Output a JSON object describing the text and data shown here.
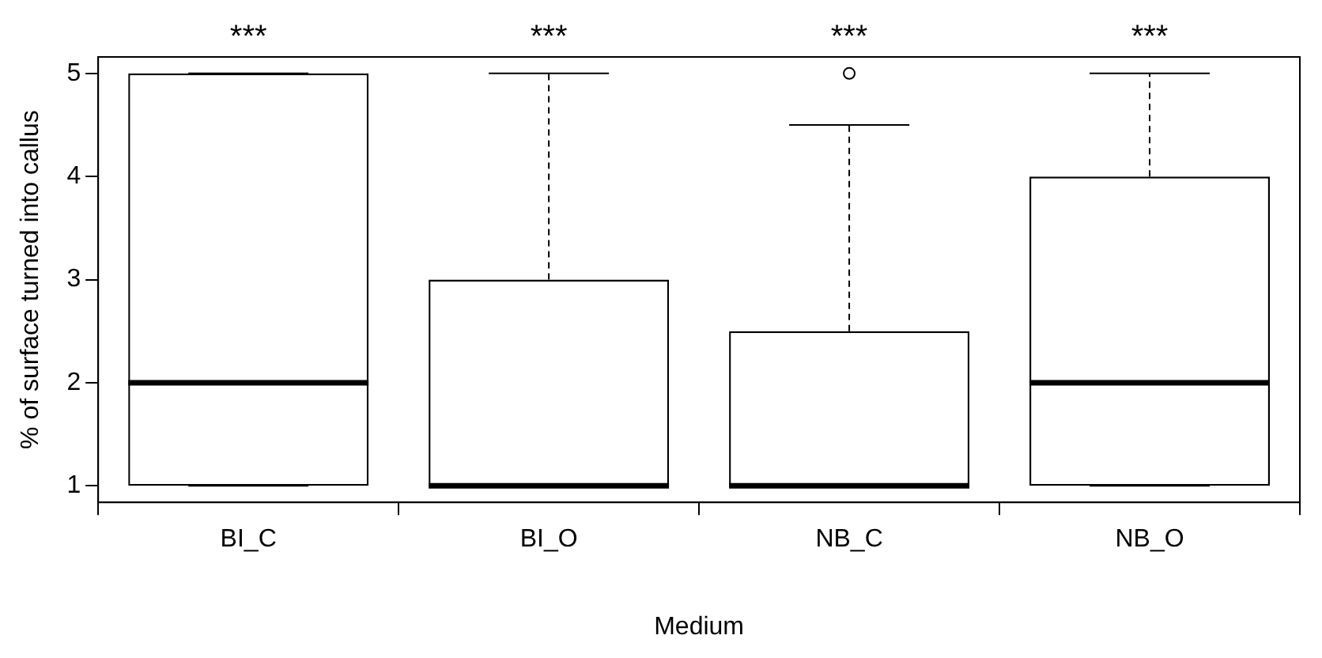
{
  "chart_data": {
    "type": "box",
    "xlabel": "Medium",
    "ylabel": "% of surface turned into callus",
    "categories": [
      "BI_C",
      "BI_O",
      "NB_C",
      "NB_O"
    ],
    "boxes": [
      {
        "low": 1,
        "q1": 1,
        "median": 2,
        "q3": 5,
        "high": 5
      },
      {
        "low": 1,
        "q1": 1,
        "median": 1,
        "q3": 3,
        "high": 5
      },
      {
        "low": 1,
        "q1": 1,
        "median": 1,
        "q3": 2.5,
        "high": 4.5,
        "outliers": [
          5
        ]
      },
      {
        "low": 1,
        "q1": 1,
        "median": 2,
        "q3": 4,
        "high": 5
      }
    ],
    "ylim": [
      0.84,
      5.16
    ],
    "yticks": [
      1,
      2,
      3,
      4,
      5
    ],
    "annotations": [
      "***",
      "***",
      "***",
      "***"
    ]
  }
}
